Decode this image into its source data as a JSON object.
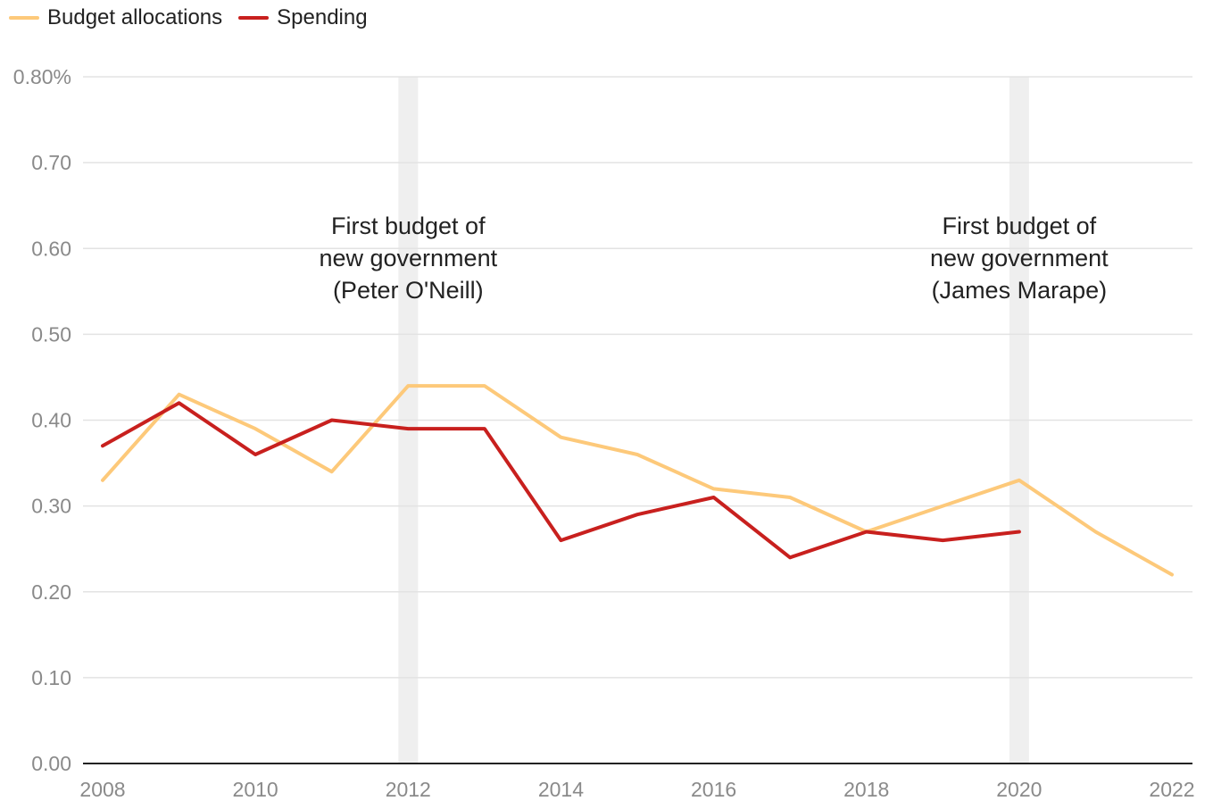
{
  "legend": [
    {
      "name": "Budget allocations",
      "color": "#fdc97a"
    },
    {
      "name": "Spending",
      "color": "#c8201e"
    }
  ],
  "chart_data": {
    "type": "line",
    "x": [
      2008,
      2009,
      2010,
      2011,
      2012,
      2013,
      2014,
      2015,
      2016,
      2017,
      2018,
      2019,
      2020,
      2021,
      2022
    ],
    "series": [
      {
        "name": "Budget allocations",
        "color": "#fdc97a",
        "values": [
          0.33,
          0.43,
          0.39,
          0.34,
          0.44,
          0.44,
          0.38,
          0.36,
          0.32,
          0.31,
          0.27,
          0.3,
          0.33,
          0.27,
          0.22
        ]
      },
      {
        "name": "Spending",
        "color": "#c8201e",
        "values": [
          0.37,
          0.42,
          0.36,
          0.4,
          0.39,
          0.39,
          0.26,
          0.29,
          0.31,
          0.24,
          0.27,
          0.26,
          0.27,
          null,
          null
        ]
      }
    ],
    "xticks": [
      "2008",
      "2010",
      "2012",
      "2014",
      "2016",
      "2018",
      "2020",
      "2022"
    ],
    "xtick_values": [
      2008,
      2010,
      2012,
      2014,
      2016,
      2018,
      2020,
      2022
    ],
    "yticks": [
      "0.80%",
      "0.70",
      "0.60",
      "0.50",
      "0.40",
      "0.30",
      "0.20",
      "0.10",
      "0.00"
    ],
    "ytick_values": [
      0.8,
      0.7,
      0.6,
      0.5,
      0.4,
      0.3,
      0.2,
      0.1,
      0.0
    ],
    "xlim": [
      2008,
      2022
    ],
    "ylim": [
      0,
      0.8
    ],
    "grid": true,
    "legend_position": "top-left",
    "highlight_years": [
      2012,
      2020
    ],
    "highlight_color": "#efefef",
    "annotations": [
      {
        "year": 2012,
        "lines": [
          "First budget of",
          "new government",
          "(Peter O'Neill)"
        ]
      },
      {
        "year": 2020,
        "lines": [
          "First budget of",
          "new government",
          "(James Marape)"
        ]
      }
    ]
  }
}
